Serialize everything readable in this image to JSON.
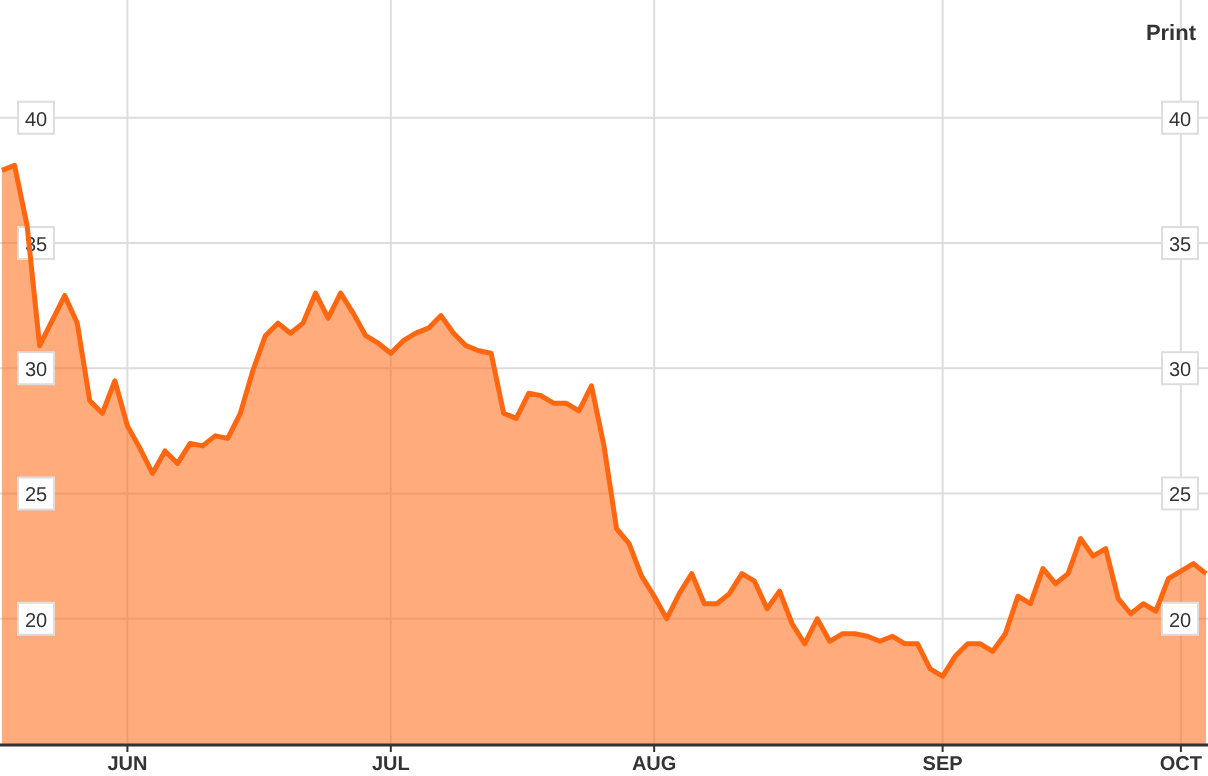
{
  "chart_data": {
    "type": "area",
    "categories": [
      null,
      null,
      null,
      null,
      null,
      null,
      null,
      null,
      null,
      null,
      "JUN",
      null,
      null,
      null,
      null,
      null,
      null,
      null,
      null,
      null,
      null,
      null,
      null,
      null,
      null,
      null,
      null,
      null,
      null,
      null,
      null,
      "JUL",
      null,
      null,
      null,
      null,
      null,
      null,
      null,
      null,
      null,
      null,
      null,
      null,
      null,
      null,
      null,
      null,
      null,
      null,
      null,
      null,
      "AUG",
      null,
      null,
      null,
      null,
      null,
      null,
      null,
      null,
      null,
      null,
      null,
      null,
      null,
      null,
      null,
      null,
      null,
      null,
      null,
      null,
      null,
      null,
      "SEP",
      null,
      null,
      null,
      null,
      null,
      null,
      null,
      null,
      null,
      null,
      null,
      null,
      null,
      null,
      null,
      null,
      null,
      null,
      "OCT",
      null,
      null
    ],
    "series": [
      {
        "color": "#ff6610",
        "values": [
          37.9,
          38.1,
          35.7,
          30.9,
          31.9,
          32.9,
          31.8,
          28.7,
          28.2,
          29.5,
          27.7,
          26.8,
          25.8,
          26.7,
          26.2,
          27.0,
          26.9,
          27.3,
          27.2,
          28.2,
          29.9,
          31.3,
          31.8,
          31.4,
          31.8,
          33.0,
          32.0,
          33.0,
          32.2,
          31.3,
          31.0,
          30.6,
          31.1,
          31.4,
          31.6,
          32.1,
          31.4,
          30.9,
          30.7,
          30.6,
          28.2,
          28.0,
          29.0,
          28.9,
          28.6,
          28.6,
          28.3,
          29.3,
          26.9,
          23.6,
          23.0,
          21.7,
          20.9,
          20.0,
          21.0,
          21.8,
          20.6,
          20.6,
          21.0,
          21.8,
          21.5,
          20.4,
          21.1,
          19.8,
          19.0,
          20.0,
          19.1,
          19.4,
          19.4,
          19.3,
          19.1,
          19.3,
          19.0,
          19.0,
          18.0,
          17.7,
          18.5,
          19.0,
          19.0,
          18.7,
          19.4,
          20.9,
          20.6,
          22.0,
          21.4,
          21.8,
          23.2,
          22.5,
          22.8,
          20.8,
          20.2,
          20.6,
          20.3,
          21.6,
          21.9,
          22.2,
          21.8
        ]
      }
    ],
    "ylim": [
      15,
      44.7
    ],
    "yticks": [
      20,
      25,
      30,
      35,
      40
    ],
    "y2lim": [
      15,
      44.7
    ],
    "y2ticks": [
      20,
      25,
      30,
      35,
      40
    ],
    "grid": true,
    "annotations": [
      "Print"
    ]
  }
}
